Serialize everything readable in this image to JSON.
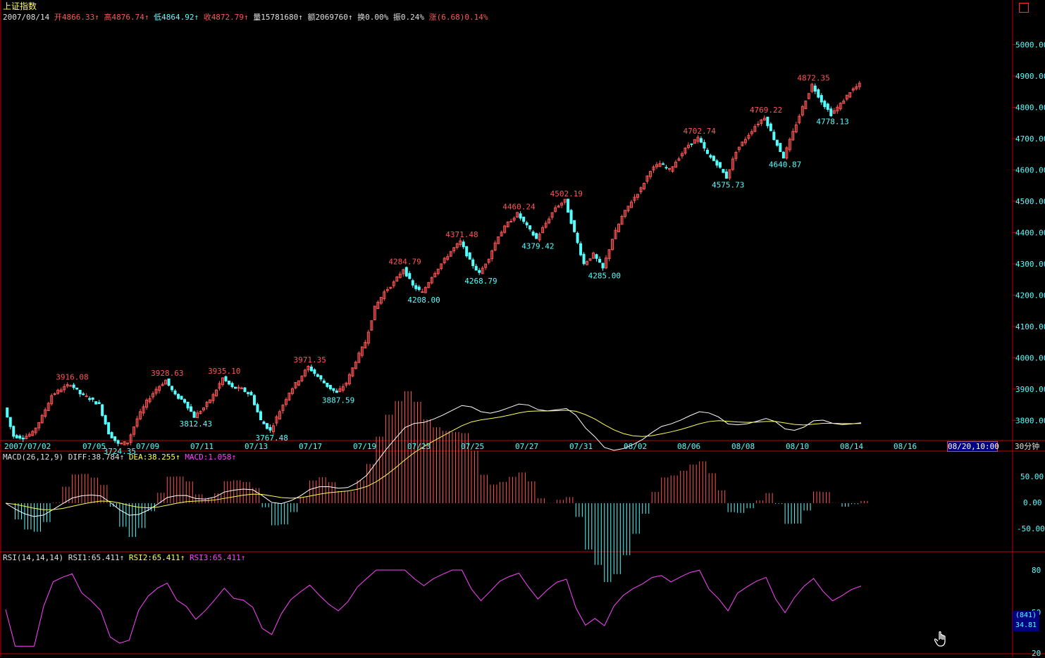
{
  "header": {
    "title": "上证指数",
    "date": "2007/08/14",
    "open_label": "开",
    "open": "4866.33",
    "high_label": "高",
    "high": "4876.74",
    "low_label": "低",
    "low": "4864.92",
    "close_label": "收",
    "close": "4872.79",
    "volume_label": "量",
    "volume": "15781680",
    "amount_label": "额",
    "amount": "2069760",
    "turnover_label": "换",
    "turnover": "0.00%",
    "amplitude_label": "振",
    "amplitude": "0.24%",
    "change_label": "涨",
    "change": "(6.68)0.14%"
  },
  "colors": {
    "up": "#ff5555",
    "down": "#55ffff",
    "grid": "#c00000",
    "diff": "#ffffff",
    "dea": "#ffff55",
    "rsi": "#ff44ff",
    "axis_text": "#55ffff"
  },
  "period": "30分钟",
  "cursor_time": "08/20,10:00",
  "x_ticks": [
    "2007/07/02",
    "07/05",
    "07/09",
    "07/11",
    "07/13",
    "07/17",
    "07/19",
    "07/23",
    "07/25",
    "07/27",
    "07/31",
    "08/02",
    "08/06",
    "08/08",
    "08/10",
    "08/14",
    "08/16"
  ],
  "macd": {
    "title": "MACD(26,12,9)",
    "diff_label": "DIFF:38.784",
    "dea_label": "DEA:38.255",
    "macd_label": "MACD:1.058",
    "ticks": [
      "50.00",
      "0.00",
      "-50.00"
    ]
  },
  "rsi": {
    "title": "RSI(14,14,14)",
    "rsi1_label": "RSI1:65.411",
    "rsi2_label": "RSI2:65.411",
    "rsi3_label": "RSI3:65.411",
    "ticks": [
      "80",
      "50",
      "20"
    ],
    "count": "(841)",
    "value": "34.81"
  },
  "chart_data": {
    "type": "candlestick",
    "title": "上证指数",
    "y_ticks": [
      5000,
      4900,
      4800,
      4700,
      4600,
      4500,
      4400,
      4300,
      4200,
      4100,
      4000,
      3900,
      3800
    ],
    "ylim": [
      3740,
      5080
    ],
    "points": [
      3840,
      3750,
      3745,
      3760,
      3812,
      3880,
      3900,
      3916,
      3885,
      3870,
      3850,
      3760,
      3724,
      3730,
      3805,
      3860,
      3900,
      3928,
      3880,
      3860,
      3812,
      3840,
      3880,
      3935,
      3905,
      3900,
      3880,
      3800,
      3767,
      3830,
      3890,
      3930,
      3971,
      3940,
      3910,
      3887,
      3920,
      3990,
      4050,
      4160,
      4210,
      4240,
      4284,
      4230,
      4208,
      4260,
      4300,
      4340,
      4371,
      4310,
      4269,
      4320,
      4390,
      4430,
      4460,
      4420,
      4380,
      4430,
      4480,
      4502,
      4400,
      4300,
      4330,
      4285,
      4380,
      4450,
      4500,
      4540,
      4600,
      4620,
      4600,
      4640,
      4680,
      4702,
      4650,
      4620,
      4576,
      4660,
      4700,
      4740,
      4769,
      4700,
      4641,
      4720,
      4800,
      4872,
      4820,
      4778,
      4810,
      4850,
      4873
    ],
    "labels": [
      {
        "t": "3916.08",
        "kind": "high",
        "i": 7
      },
      {
        "t": "3724.35",
        "kind": "low",
        "i": 12
      },
      {
        "t": "3928.63",
        "kind": "high",
        "i": 17
      },
      {
        "t": "3812.43",
        "kind": "low",
        "i": 20
      },
      {
        "t": "3935.10",
        "kind": "high",
        "i": 23
      },
      {
        "t": "3767.48",
        "kind": "low",
        "i": 28
      },
      {
        "t": "3971.35",
        "kind": "high",
        "i": 32
      },
      {
        "t": "3887.59",
        "kind": "low",
        "i": 35
      },
      {
        "t": "4284.79",
        "kind": "high",
        "i": 42
      },
      {
        "t": "4208.00",
        "kind": "low",
        "i": 44
      },
      {
        "t": "4371.48",
        "kind": "high",
        "i": 48
      },
      {
        "t": "4268.79",
        "kind": "low",
        "i": 50
      },
      {
        "t": "4460.24",
        "kind": "high",
        "i": 54
      },
      {
        "t": "4379.42",
        "kind": "low",
        "i": 56
      },
      {
        "t": "4502.19",
        "kind": "high",
        "i": 59
      },
      {
        "t": "4285.00",
        "kind": "low",
        "i": 63
      },
      {
        "t": "4702.74",
        "kind": "high",
        "i": 73
      },
      {
        "t": "4575.73",
        "kind": "low",
        "i": 76
      },
      {
        "t": "4769.22",
        "kind": "high",
        "i": 80
      },
      {
        "t": "4640.87",
        "kind": "low",
        "i": 82
      },
      {
        "t": "4872.35",
        "kind": "high",
        "i": 85
      },
      {
        "t": "4778.13",
        "kind": "low",
        "i": 87
      }
    ]
  }
}
